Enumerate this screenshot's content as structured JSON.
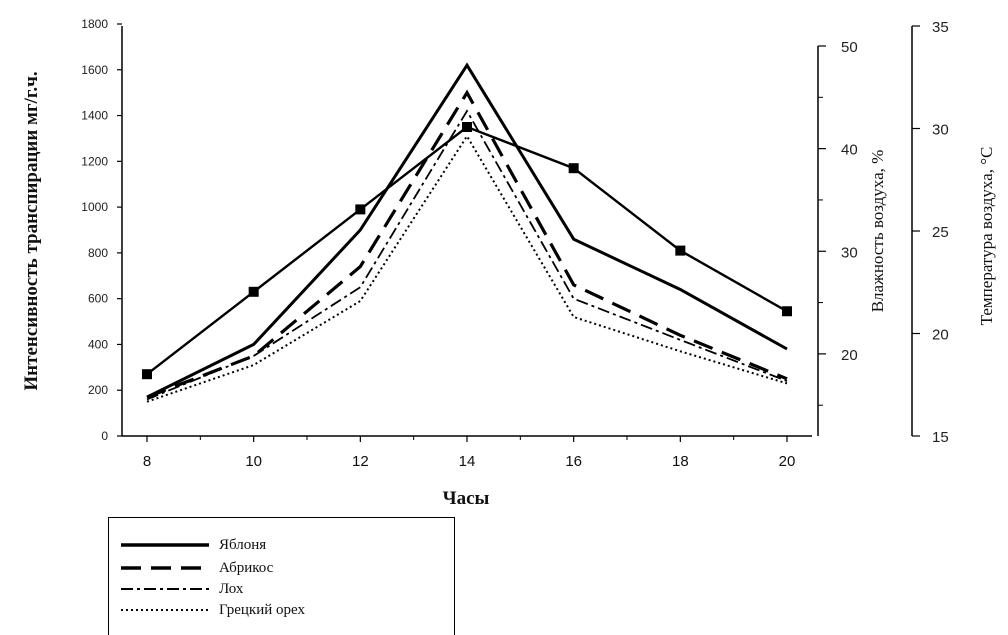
{
  "chart_data": {
    "type": "line",
    "ylabel": "Интенсивность транспирации мг/г.ч.",
    "xlabel": "Часы",
    "x": [
      8,
      10,
      12,
      14,
      16,
      18,
      20
    ],
    "xticks": [
      "8",
      "10",
      "12",
      "14",
      "16",
      "18",
      "20"
    ],
    "ylim": [
      0,
      1800
    ],
    "yticks": [
      "0",
      "200",
      "400",
      "600",
      "800",
      "1000",
      "1200",
      "1400",
      "1600",
      "1800"
    ],
    "right_axis_1": {
      "label": "Влажность воздуха, %",
      "ylim": [
        12,
        50
      ],
      "ticks": [
        "20",
        "30",
        "40",
        "50"
      ]
    },
    "right_axis_2": {
      "label": "Температура воздуха, °C",
      "ylim": [
        15,
        35
      ],
      "ticks": [
        "15",
        "20",
        "25",
        "30",
        "35"
      ]
    },
    "series": [
      {
        "name": "Яблоня",
        "style": "solid",
        "values": [
          170,
          400,
          900,
          1620,
          860,
          640,
          380
        ]
      },
      {
        "name": "Абрикос",
        "style": "dashed",
        "values": [
          170,
          350,
          740,
          1500,
          660,
          440,
          250
        ]
      },
      {
        "name": "Лох",
        "style": "dashdot",
        "values": [
          160,
          350,
          650,
          1420,
          600,
          420,
          240
        ]
      },
      {
        "name": "Грецкий орех",
        "style": "dotted",
        "values": [
          150,
          310,
          590,
          1310,
          520,
          370,
          230
        ]
      },
      {
        "name": "",
        "style": "marker-line",
        "values": [
          270,
          630,
          990,
          1350,
          1170,
          810,
          545
        ]
      }
    ]
  }
}
